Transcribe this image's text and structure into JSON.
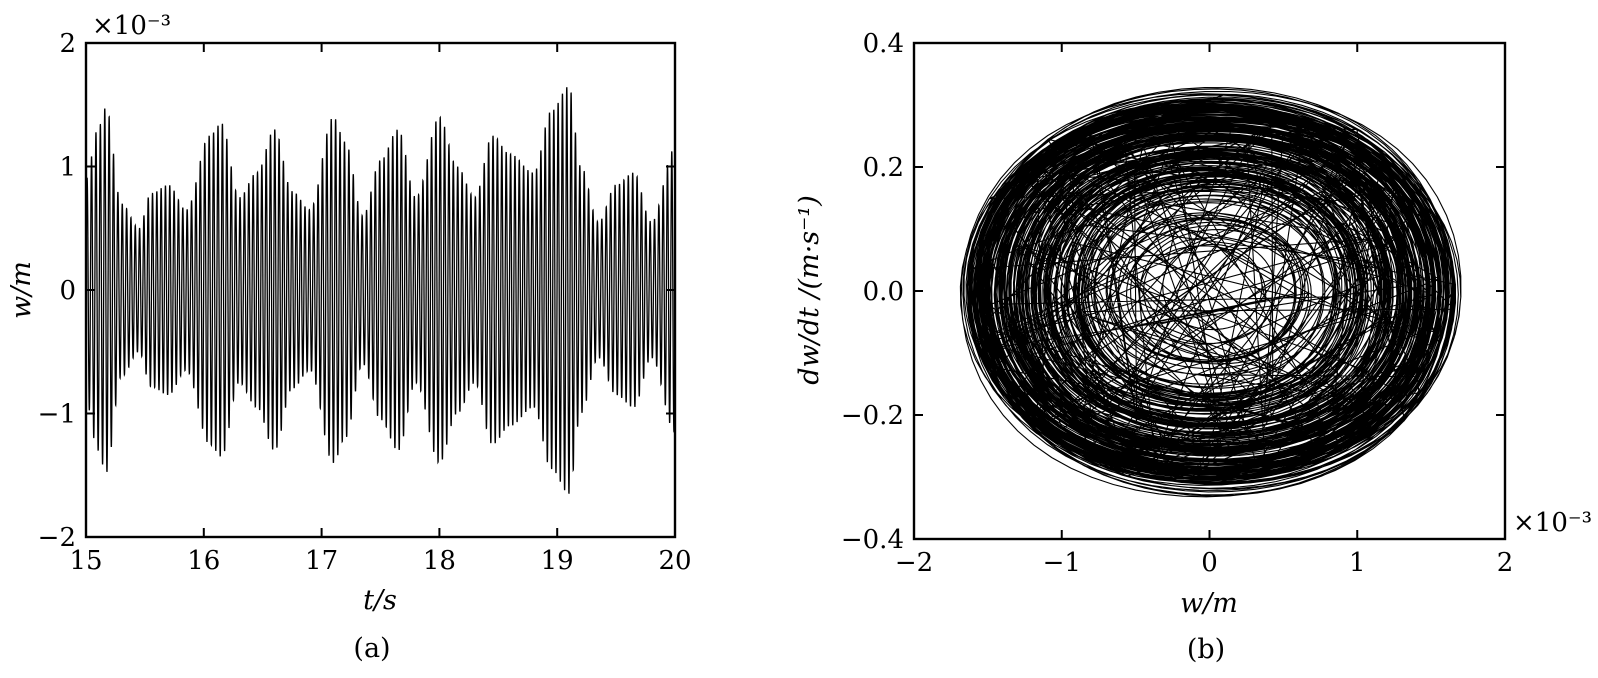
{
  "chart_data": [
    {
      "type": "line",
      "panel_label": "(a)",
      "xlabel": "t/s",
      "ylabel": "w/m",
      "xlim": [
        15,
        20
      ],
      "ylim": [
        -2,
        2
      ],
      "y_scale_note": "×10⁻³",
      "x_ticks": [
        "15",
        "16",
        "17",
        "18",
        "19",
        "20"
      ],
      "y_ticks": [
        "2",
        "1",
        "0",
        "−1",
        "−2"
      ],
      "grid": false,
      "series": [
        {
          "oscillation_frequency_hz": 27,
          "envelope": {
            "t": [
              15.0,
              15.1,
              15.17,
              15.3,
              15.45,
              15.55,
              15.7,
              15.85,
              16.05,
              16.15,
              16.3,
              16.45,
              16.6,
              16.75,
              16.9,
              17.1,
              17.2,
              17.35,
              17.5,
              17.65,
              17.8,
              18.0,
              18.15,
              18.3,
              18.45,
              18.6,
              18.8,
              18.95,
              19.1,
              19.2,
              19.35,
              19.5,
              19.65,
              19.8,
              20.0
            ],
            "amp": [
              0.9,
              1.3,
              1.48,
              0.7,
              0.5,
              0.78,
              0.85,
              0.65,
              1.25,
              1.35,
              0.75,
              0.95,
              1.3,
              0.8,
              0.65,
              1.4,
              1.2,
              0.6,
              1.05,
              1.3,
              0.75,
              1.4,
              1.0,
              0.75,
              1.25,
              1.1,
              0.95,
              1.45,
              1.65,
              1.0,
              0.55,
              0.85,
              0.95,
              0.55,
              1.15
            ]
          }
        }
      ]
    },
    {
      "type": "line",
      "subtype": "phase-portrait",
      "panel_label": "(b)",
      "xlabel": "w/m",
      "ylabel": "dw/dt /(m·s⁻¹)",
      "xlim": [
        -2,
        2
      ],
      "ylim": [
        -0.4,
        0.4
      ],
      "x_scale_note": "×10⁻³",
      "x_ticks": [
        "−2",
        "−1",
        "0",
        "1",
        "2"
      ],
      "y_ticks": [
        "0.4",
        "0.2",
        "0.0",
        "−0.2",
        "−0.4"
      ],
      "grid": false,
      "series": [
        {
          "description": "trajectory of w vs dw/dt",
          "w_amplitude_range": [
            0.3,
            1.65
          ],
          "v_amplitude_range": [
            0.06,
            0.33
          ]
        }
      ]
    }
  ]
}
